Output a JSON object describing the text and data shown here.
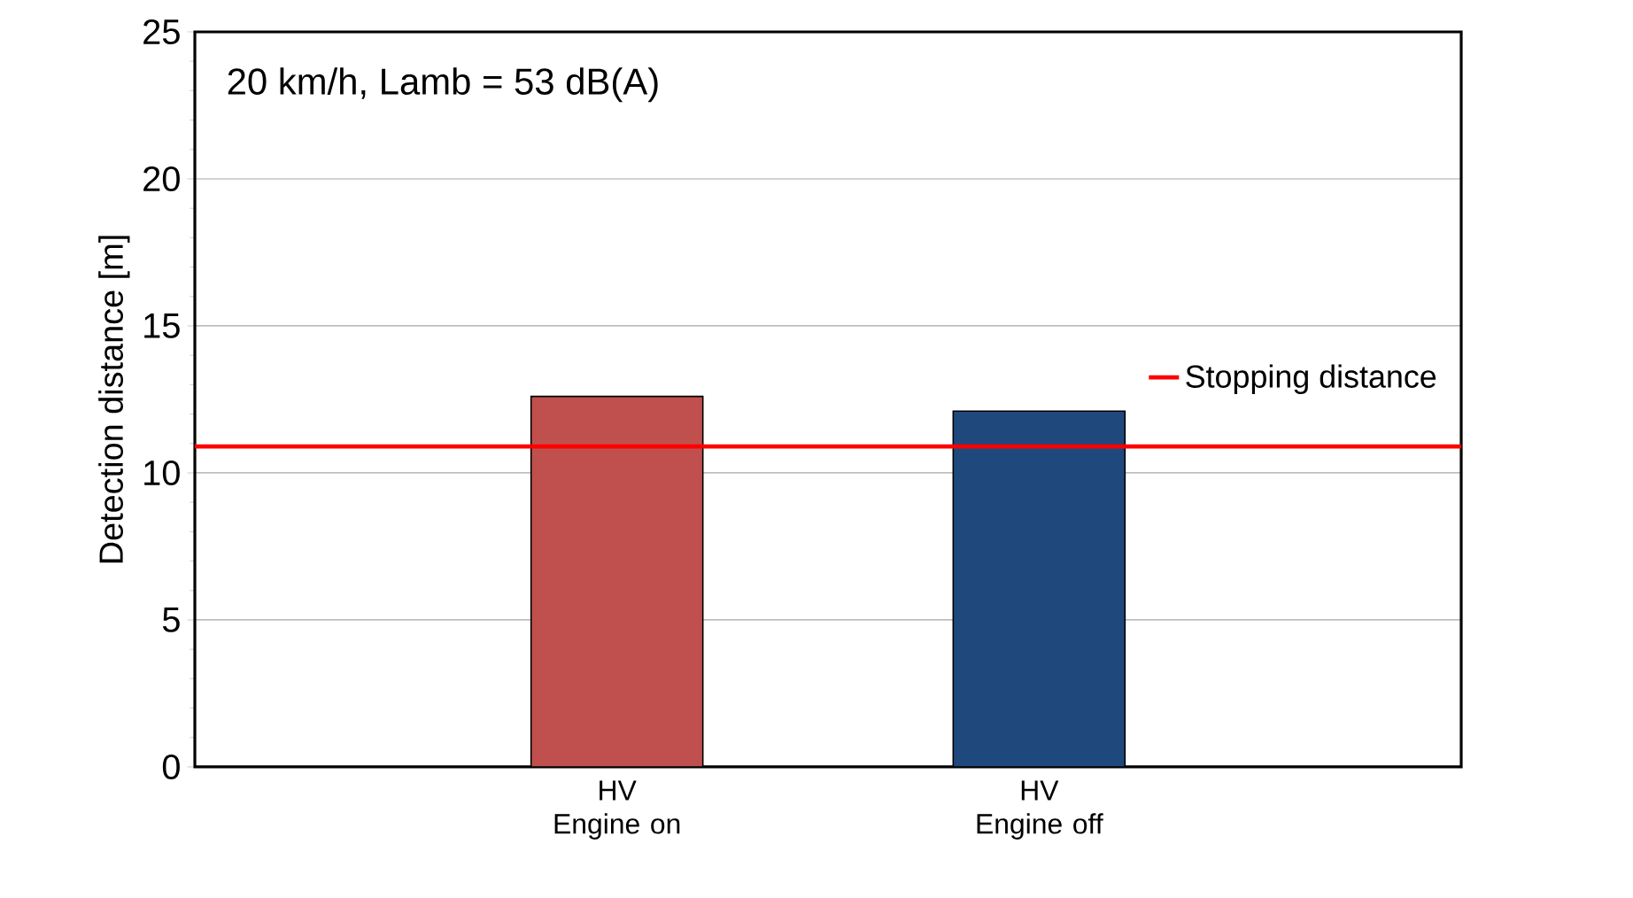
{
  "chart_data": {
    "type": "bar",
    "categories": [
      "HV Engine on",
      "HV Engine off"
    ],
    "values": [
      12.6,
      12.1
    ],
    "colors": [
      "#c0504d",
      "#1f497d"
    ],
    "ylabel": "Detection distance [m]",
    "ylim": [
      0,
      25
    ],
    "yticks": [
      0,
      5,
      10,
      15,
      20,
      25
    ],
    "grid": "y",
    "legend": "right",
    "annotations": [
      "20 km/h, Lamb = 53 dB(A)"
    ],
    "ref_lines": [
      {
        "axis": "y",
        "value": 10.9,
        "label": "Stopping distance",
        "color": "#ff0000"
      }
    ]
  }
}
